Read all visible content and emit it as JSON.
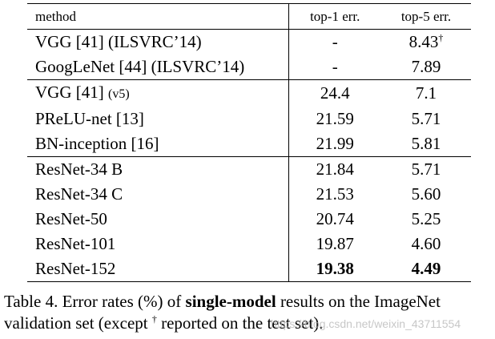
{
  "table": {
    "headers": [
      "method",
      "top-1 err.",
      "top-5 err."
    ],
    "groups": [
      [
        {
          "method": "VGG [41] (ILSVRC’14)",
          "top1": "-",
          "top5": "8.43",
          "top5_mark": "†"
        },
        {
          "method": "GoogLeNet [44] (ILSVRC’14)",
          "top1": "-",
          "top5": "7.89"
        }
      ],
      [
        {
          "method": "VGG [41]",
          "method_suffix": "(v5)",
          "top1": "24.4",
          "top5": "7.1"
        },
        {
          "method": "PReLU-net [13]",
          "top1": "21.59",
          "top5": "5.71"
        },
        {
          "method": "BN-inception [16]",
          "top1": "21.99",
          "top5": "5.81"
        }
      ],
      [
        {
          "method": "ResNet-34 B",
          "top1": "21.84",
          "top5": "5.71"
        },
        {
          "method": "ResNet-34 C",
          "top1": "21.53",
          "top5": "5.60"
        },
        {
          "method": "ResNet-50",
          "top1": "20.74",
          "top5": "5.25"
        },
        {
          "method": "ResNet-101",
          "top1": "19.87",
          "top5": "4.60"
        },
        {
          "method": "ResNet-152",
          "top1": "19.38",
          "top5": "4.49",
          "bold_values": true
        }
      ]
    ]
  },
  "caption": {
    "part1": "Table 4. Error rates (%) of ",
    "bold": "single-model",
    "part2": " results on the ImageNet validation set (except ",
    "mark": "†",
    "part3": " reported on the test set)."
  },
  "watermark": "https://blog.csdn.net/weixin_43711554"
}
